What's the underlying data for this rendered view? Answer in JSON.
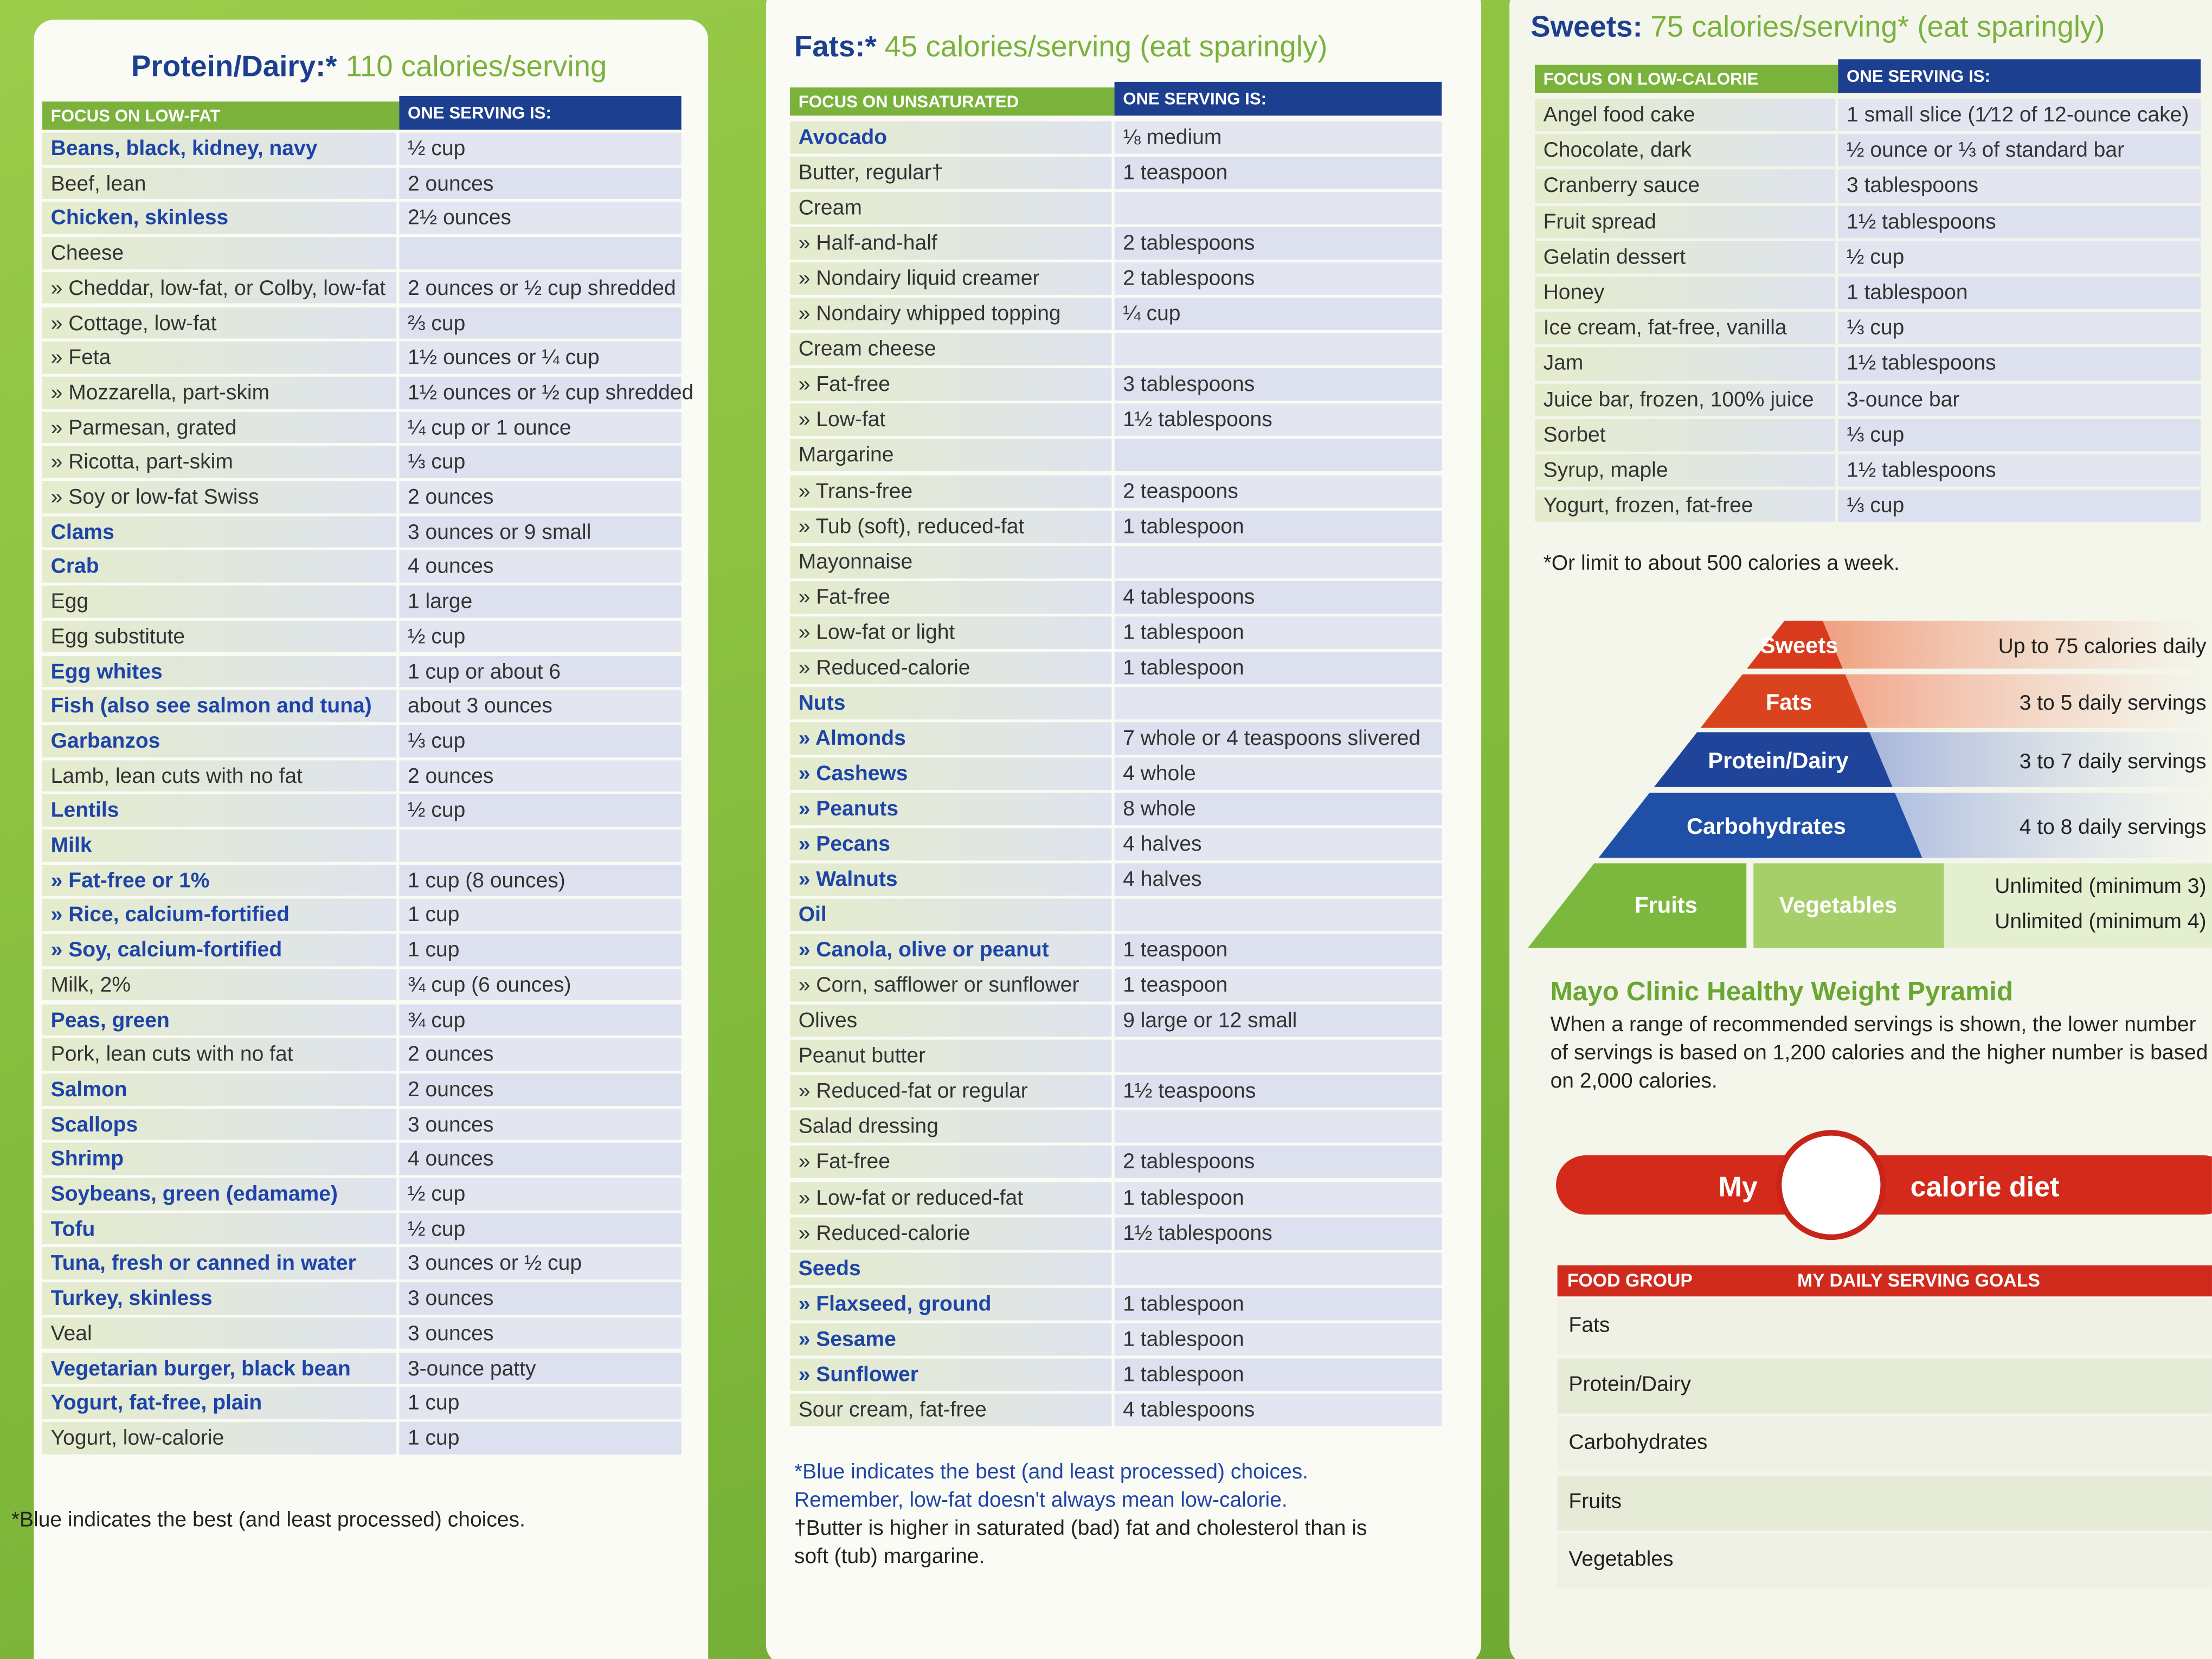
{
  "protein_panel": {
    "title": "Protein/Dairy:*",
    "subtitle": "110 calories/serving",
    "headers": [
      "FOCUS ON LOW-FAT",
      "ONE SERVING IS:"
    ],
    "rows": [
      {
        "item": "Beans, black, kidney, navy",
        "serving": "½ cup",
        "best": true
      },
      {
        "item": "Beef, lean",
        "serving": "2 ounces"
      },
      {
        "item": "Chicken, skinless",
        "serving": "2½ ounces",
        "best": true
      },
      {
        "item": "Cheese",
        "serving": null
      },
      {
        "item": "» Cheddar, low-fat, or Colby, low-fat",
        "serving": "2 ounces or ½ cup shredded"
      },
      {
        "item": "» Cottage, low-fat",
        "serving": "⅔ cup"
      },
      {
        "item": "» Feta",
        "serving": "1½ ounces or ¼ cup"
      },
      {
        "item": "» Mozzarella, part-skim",
        "serving": "1½ ounces or ½ cup shredded"
      },
      {
        "item": "» Parmesan, grated",
        "serving": "¼ cup or 1 ounce"
      },
      {
        "item": "» Ricotta, part-skim",
        "serving": "⅓ cup"
      },
      {
        "item": "» Soy or low-fat Swiss",
        "serving": "2 ounces"
      },
      {
        "item": "Clams",
        "serving": "3 ounces or 9 small",
        "best": true
      },
      {
        "item": "Crab",
        "serving": "4 ounces",
        "best": true
      },
      {
        "item": "Egg",
        "serving": "1 large"
      },
      {
        "item": "Egg substitute",
        "serving": "½ cup"
      },
      {
        "item": "Egg whites",
        "serving": "1 cup or about 6",
        "best": true
      },
      {
        "item": "Fish (also see salmon and tuna)",
        "serving": "about 3 ounces",
        "best": true
      },
      {
        "item": "Garbanzos",
        "serving": "⅓ cup",
        "best": true
      },
      {
        "item": "Lamb, lean cuts with no fat",
        "serving": "2 ounces"
      },
      {
        "item": "Lentils",
        "serving": "½ cup",
        "best": true
      },
      {
        "item": "Milk",
        "serving": null,
        "best": true
      },
      {
        "item": "» Fat-free or 1%",
        "serving": "1 cup (8 ounces)",
        "best": true
      },
      {
        "item": "» Rice, calcium-fortified",
        "serving": "1 cup",
        "best": true
      },
      {
        "item": "» Soy, calcium-fortified",
        "serving": "1 cup",
        "best": true
      },
      {
        "item": "Milk, 2%",
        "serving": "¾ cup (6 ounces)"
      },
      {
        "item": "Peas, green",
        "serving": "¾ cup",
        "best": true
      },
      {
        "item": "Pork, lean cuts with no fat",
        "serving": "2 ounces"
      },
      {
        "item": "Salmon",
        "serving": "2 ounces",
        "best": true
      },
      {
        "item": "Scallops",
        "serving": "3 ounces",
        "best": true
      },
      {
        "item": "Shrimp",
        "serving": "4 ounces",
        "best": true
      },
      {
        "item": "Soybeans, green (edamame)",
        "serving": "½ cup",
        "best": true
      },
      {
        "item": "Tofu",
        "serving": "½ cup",
        "best": true
      },
      {
        "item": "Tuna, fresh or canned in water",
        "serving": "3 ounces or ½ cup",
        "best": true
      },
      {
        "item": "Turkey, skinless",
        "serving": "3 ounces",
        "best": true
      },
      {
        "item": "Veal",
        "serving": "3 ounces"
      },
      {
        "item": "Vegetarian burger, black bean",
        "serving": "3-ounce patty",
        "best": true
      },
      {
        "item": "Yogurt, fat-free, plain",
        "serving": "1 cup",
        "best": true
      },
      {
        "item": "Yogurt, low-calorie",
        "serving": "1 cup"
      }
    ],
    "footnotes": [
      "*Blue indicates the best (and least processed) choices."
    ]
  },
  "fats_panel": {
    "title": "Fats:*",
    "subtitle": "45 calories/serving (eat sparingly)",
    "headers": [
      "FOCUS ON UNSATURATED",
      "ONE SERVING IS:"
    ],
    "rows": [
      {
        "item": "Avocado",
        "serving": "⅛ medium",
        "best": true
      },
      {
        "item": "Butter, regular†",
        "serving": "1 teaspoon"
      },
      {
        "item": "Cream",
        "serving": null
      },
      {
        "item": "» Half-and-half",
        "serving": "2 tablespoons"
      },
      {
        "item": "» Nondairy liquid creamer",
        "serving": "2 tablespoons"
      },
      {
        "item": "» Nondairy whipped topping",
        "serving": "¼ cup"
      },
      {
        "item": "Cream cheese",
        "serving": null
      },
      {
        "item": "» Fat-free",
        "serving": "3 tablespoons"
      },
      {
        "item": "» Low-fat",
        "serving": "1½ tablespoons"
      },
      {
        "item": "Margarine",
        "serving": null
      },
      {
        "item": "» Trans-free",
        "serving": "2 teaspoons"
      },
      {
        "item": "» Tub (soft), reduced-fat",
        "serving": "1 tablespoon"
      },
      {
        "item": "Mayonnaise",
        "serving": null
      },
      {
        "item": "» Fat-free",
        "serving": "4 tablespoons"
      },
      {
        "item": "» Low-fat or light",
        "serving": "1 tablespoon"
      },
      {
        "item": "» Reduced-calorie",
        "serving": "1 tablespoon"
      },
      {
        "item": "Nuts",
        "serving": null,
        "best": true
      },
      {
        "item": "» Almonds",
        "serving": "7 whole or 4 teaspoons slivered",
        "best": true
      },
      {
        "item": "» Cashews",
        "serving": "4 whole",
        "best": true
      },
      {
        "item": "» Peanuts",
        "serving": "8 whole",
        "best": true
      },
      {
        "item": "» Pecans",
        "serving": "4 halves",
        "best": true
      },
      {
        "item": "» Walnuts",
        "serving": "4 halves",
        "best": true
      },
      {
        "item": "Oil",
        "serving": null,
        "best": true
      },
      {
        "item": "» Canola, olive or peanut",
        "serving": "1 teaspoon",
        "best": true
      },
      {
        "item": "» Corn, safflower or sunflower",
        "serving": "1 teaspoon"
      },
      {
        "item": "Olives",
        "serving": "9 large or 12 small"
      },
      {
        "item": "Peanut butter",
        "serving": null
      },
      {
        "item": "» Reduced-fat or regular",
        "serving": "1½ teaspoons"
      },
      {
        "item": "Salad dressing",
        "serving": null
      },
      {
        "item": "» Fat-free",
        "serving": "2 tablespoons"
      },
      {
        "item": "» Low-fat or reduced-fat",
        "serving": "1 tablespoon"
      },
      {
        "item": "» Reduced-calorie",
        "serving": "1½ tablespoons"
      },
      {
        "item": "Seeds",
        "serving": null,
        "best": true
      },
      {
        "item": "» Flaxseed, ground",
        "serving": "1 tablespoon",
        "best": true
      },
      {
        "item": "» Sesame",
        "serving": "1 tablespoon",
        "best": true
      },
      {
        "item": "» Sunflower",
        "serving": "1 tablespoon",
        "best": true
      },
      {
        "item": "Sour cream, fat-free",
        "serving": "4 tablespoons"
      }
    ],
    "footnotes": [
      "*Blue indicates the best (and least processed) choices. Remember, low-fat doesn't always mean low-calorie.",
      "†Butter is higher in saturated (bad) fat and cholesterol than is soft (tub) margarine."
    ]
  },
  "sweets_panel": {
    "title": "Sweets:",
    "subtitle": "75 calories/serving* (eat sparingly)",
    "headers": [
      "FOCUS ON LOW-CALORIE",
      "ONE SERVING IS:"
    ],
    "rows": [
      {
        "item": "Angel food cake",
        "serving": "1 small slice (1⁄12 of 12-ounce cake)"
      },
      {
        "item": "Chocolate, dark",
        "serving": "½ ounce or ⅓ of standard bar"
      },
      {
        "item": "Cranberry sauce",
        "serving": "3 tablespoons"
      },
      {
        "item": "Fruit spread",
        "serving": "1½ tablespoons"
      },
      {
        "item": "Gelatin dessert",
        "serving": "½ cup"
      },
      {
        "item": "Honey",
        "serving": "1 tablespoon"
      },
      {
        "item": "Ice cream, fat-free, vanilla",
        "serving": "⅓ cup"
      },
      {
        "item": "Jam",
        "serving": "1½ tablespoons"
      },
      {
        "item": "Juice bar, frozen, 100% juice",
        "serving": "3-ounce bar"
      },
      {
        "item": "Sorbet",
        "serving": "⅓ cup"
      },
      {
        "item": "Syrup, maple",
        "serving": "1½ tablespoons"
      },
      {
        "item": "Yogurt, frozen, fat-free",
        "serving": "⅓ cup"
      }
    ],
    "footnotes": [
      "*Or limit to about 500 calories a week."
    ]
  },
  "pyramid": {
    "levels": [
      {
        "name": "Sweets",
        "servings": "Up to 75 calories daily"
      },
      {
        "name": "Fats",
        "servings": "3 to 5 daily servings"
      },
      {
        "name": "Protein/Dairy",
        "servings": "3 to 7 daily servings"
      },
      {
        "name": "Carbohydrates",
        "servings": "4 to 8 daily servings"
      },
      {
        "name": "Fruits",
        "servings": "Unlimited (minimum 3)"
      },
      {
        "name": "Vegetables",
        "servings": "Unlimited (minimum 4)"
      }
    ],
    "title": "Mayo Clinic Healthy Weight Pyramid",
    "description": "When a range of recommended servings is shown, the lower number of servings is based on 1,200 calories and the higher number is based on 2,000 calories."
  },
  "calorie_diet": {
    "before": "My",
    "after": "calorie diet"
  },
  "goals_table": {
    "headers": [
      "FOOD GROUP",
      "MY DAILY SERVING GOALS"
    ],
    "rows": [
      "Fats",
      "Protein/Dairy",
      "Carbohydrates",
      "Fruits",
      "Vegetables"
    ]
  }
}
